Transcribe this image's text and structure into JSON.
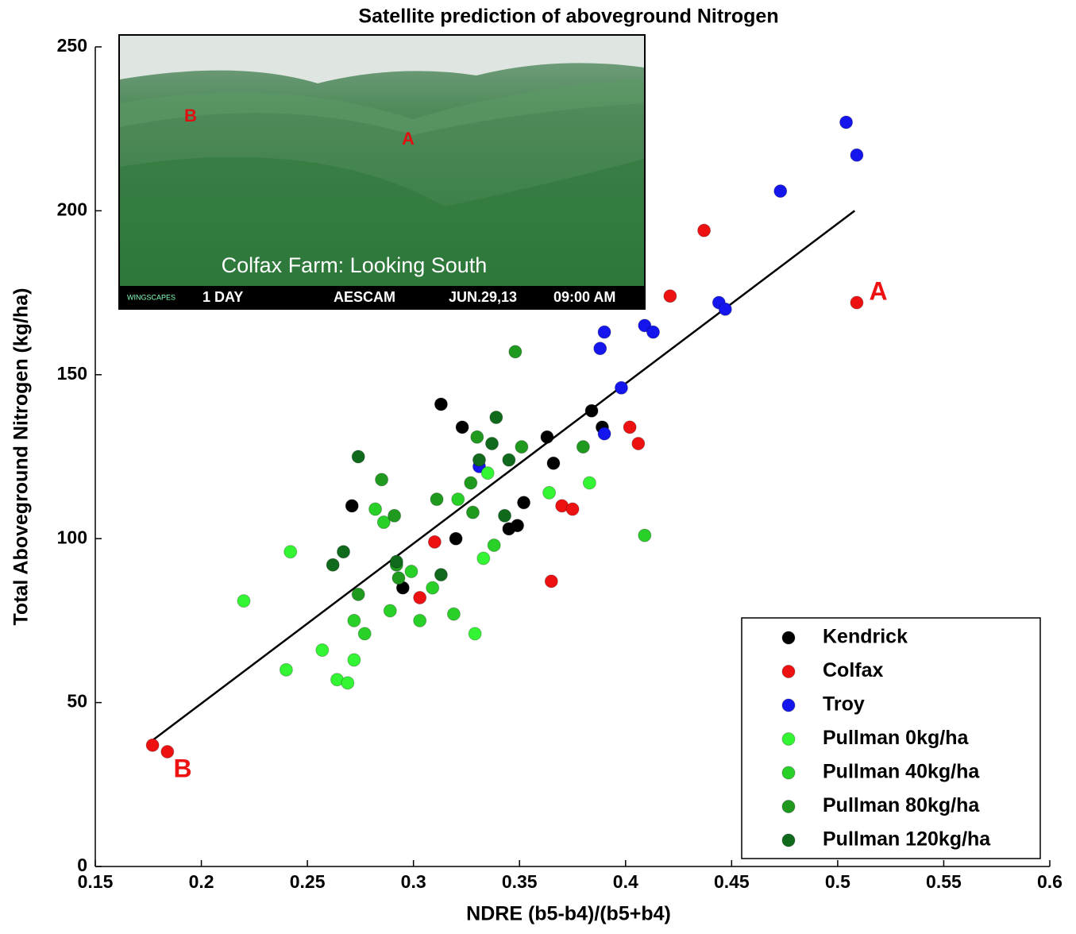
{
  "chart_data": {
    "type": "scatter",
    "title": "Satellite prediction of aboveground Nitrogen",
    "xlabel": "NDRE (b5-b4)/(b5+b4)",
    "ylabel": "Total Aboveground Nitrogen (kg/ha)",
    "xlim": [
      0.15,
      0.6
    ],
    "ylim": [
      0,
      250
    ],
    "xticks": [
      0.15,
      0.2,
      0.25,
      0.3,
      0.35,
      0.4,
      0.45,
      0.5,
      0.55,
      0.6
    ],
    "yticks": [
      0,
      50,
      100,
      150,
      200,
      250
    ],
    "grid": false,
    "legend": "lower right",
    "series": [
      {
        "name": "Kendrick",
        "color": "#000000",
        "x": [
          0.271,
          0.313,
          0.323,
          0.32,
          0.295,
          0.345,
          0.349,
          0.352,
          0.363,
          0.366,
          0.384,
          0.389
        ],
        "values": [
          110,
          141,
          134,
          100,
          85,
          103,
          104,
          111,
          131,
          123,
          139,
          134
        ]
      },
      {
        "name": "Colfax",
        "color": "#ee1111",
        "x": [
          0.177,
          0.184,
          0.31,
          0.303,
          0.365,
          0.37,
          0.375,
          0.402,
          0.406,
          0.421,
          0.437,
          0.509
        ],
        "values": [
          37,
          35,
          99,
          82,
          87,
          110,
          109,
          134,
          129,
          174,
          194,
          172
        ]
      },
      {
        "name": "Troy",
        "color": "#1515ee",
        "x": [
          0.331,
          0.39,
          0.39,
          0.388,
          0.398,
          0.409,
          0.413,
          0.444,
          0.447,
          0.473,
          0.504,
          0.509
        ],
        "values": [
          122,
          132,
          163,
          158,
          146,
          165,
          163,
          172,
          170,
          206,
          227,
          217
        ]
      },
      {
        "name": "Pullman 0kg/ha",
        "color": "#33f533",
        "x": [
          0.22,
          0.24,
          0.242,
          0.257,
          0.264,
          0.269,
          0.272,
          0.333,
          0.335,
          0.329,
          0.383,
          0.364
        ],
        "values": [
          81,
          60,
          96,
          66,
          57,
          56,
          63,
          94,
          120,
          71,
          117,
          114
        ]
      },
      {
        "name": "Pullman 40kg/ha",
        "color": "#28d028",
        "x": [
          0.272,
          0.277,
          0.282,
          0.286,
          0.289,
          0.299,
          0.303,
          0.309,
          0.319,
          0.321,
          0.338,
          0.409
        ],
        "values": [
          75,
          71,
          109,
          105,
          78,
          90,
          75,
          85,
          77,
          112,
          98,
          101
        ]
      },
      {
        "name": "Pullman 80kg/ha",
        "color": "#1f9a1f",
        "x": [
          0.274,
          0.285,
          0.291,
          0.292,
          0.293,
          0.311,
          0.327,
          0.328,
          0.33,
          0.351,
          0.38,
          0.348
        ],
        "values": [
          83,
          118,
          107,
          92,
          88,
          112,
          117,
          108,
          131,
          128,
          128,
          157
        ]
      },
      {
        "name": "Pullman 120kg/ha",
        "color": "#106a1c",
        "x": [
          0.262,
          0.267,
          0.274,
          0.292,
          0.313,
          0.331,
          0.337,
          0.339,
          0.343,
          0.345
        ],
        "values": [
          92,
          96,
          125,
          93,
          89,
          124,
          129,
          137,
          107,
          124
        ]
      }
    ],
    "trendline": {
      "color": "#000000",
      "x": [
        0.177,
        0.508
      ],
      "y": [
        38.5,
        200
      ]
    },
    "annotations": [
      "A",
      "B"
    ],
    "inset": {
      "markers": [
        "B",
        "A"
      ],
      "caption": "Colfax Farm: Looking South",
      "brand": "WINGSCAPES",
      "period": "1 DAY",
      "camera": "AESCAM",
      "date": "JUN.29,13",
      "time": "09:00 AM"
    }
  }
}
